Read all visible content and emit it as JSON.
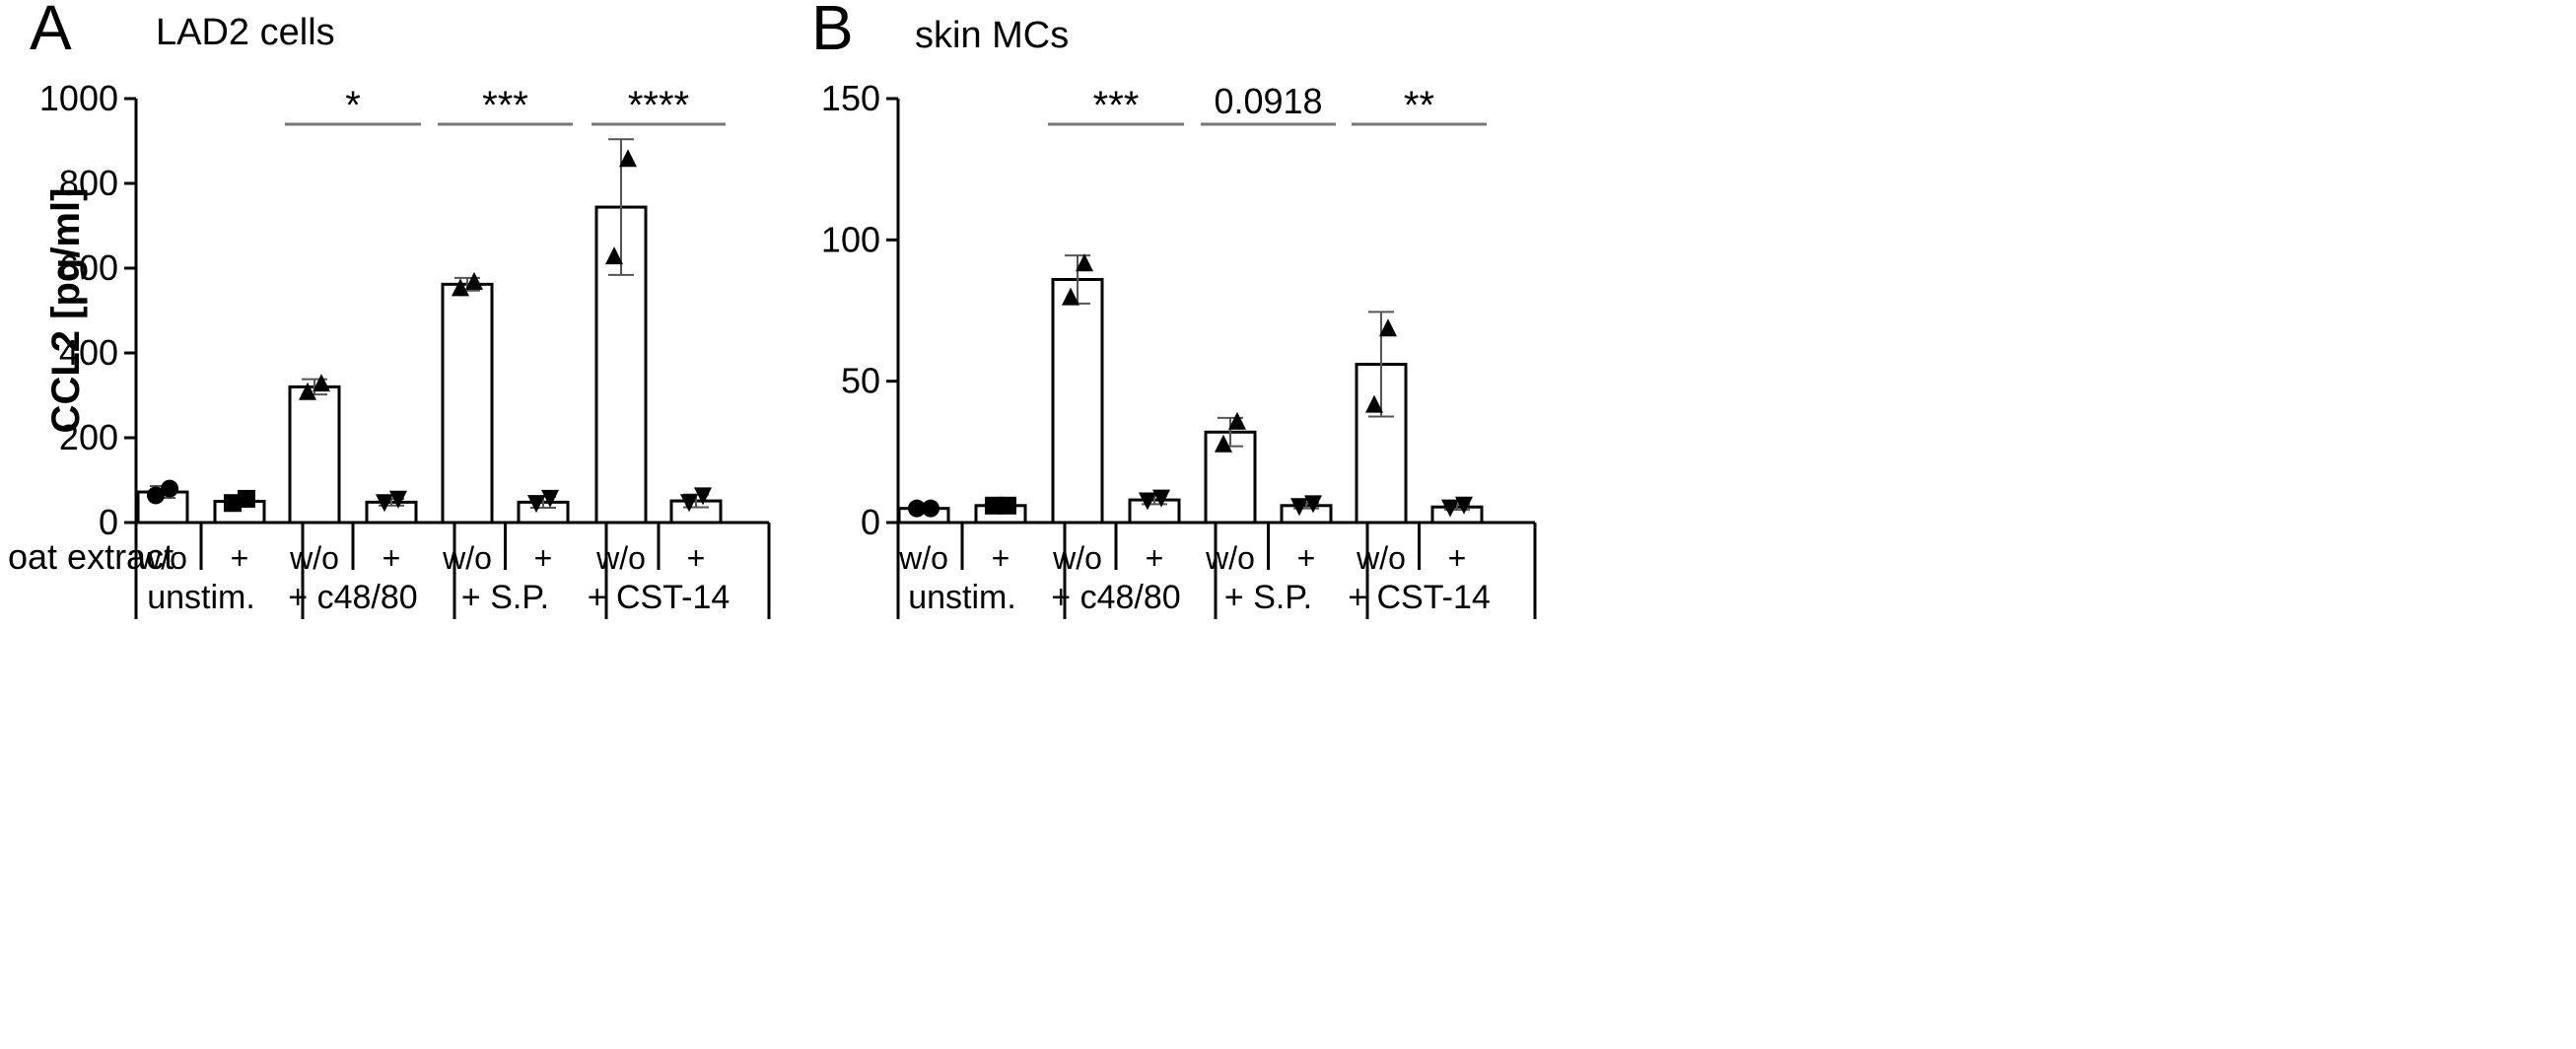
{
  "row_label": "oat extract",
  "chart_data": [
    {
      "type": "bar",
      "panel": "A",
      "title": "LAD2 cells",
      "ylabel": "CCL2 [pg/ml]",
      "ylim": [
        0,
        1000
      ],
      "yticks": [
        0,
        200,
        400,
        600,
        800,
        1000
      ],
      "categories": [
        "w/o",
        "+",
        "w/o",
        "+",
        "w/o",
        "+",
        "w/o",
        "+"
      ],
      "groups": [
        "unstim.",
        "+ c48/80",
        "+ S.P.",
        "+ CST-14"
      ],
      "values": [
        72,
        50,
        320,
        48,
        562,
        48,
        744,
        51
      ],
      "error": [
        14,
        10,
        18,
        8,
        15,
        13,
        160,
        15
      ],
      "points": [
        [
          64,
          80
        ],
        [
          46,
          56
        ],
        [
          310,
          330
        ],
        [
          46,
          54
        ],
        [
          555,
          570
        ],
        [
          44,
          56
        ],
        [
          630,
          860
        ],
        [
          46,
          62
        ]
      ],
      "markers": [
        "circle",
        "square",
        "triangle-up",
        "triangle-down",
        "triangle-up",
        "triangle-down",
        "triangle-up",
        "triangle-down"
      ],
      "significance": [
        {
          "group": 1,
          "label": "*"
        },
        {
          "group": 2,
          "label": "***"
        },
        {
          "group": 3,
          "label": "****"
        }
      ]
    },
    {
      "type": "bar",
      "panel": "B",
      "title": "skin MCs",
      "ylabel": "",
      "ylim": [
        0,
        150
      ],
      "yticks": [
        0,
        50,
        100,
        150
      ],
      "categories": [
        "w/o",
        "+",
        "w/o",
        "+",
        "w/o",
        "+",
        "w/o",
        "+"
      ],
      "groups": [
        "unstim.",
        "+ c48/80",
        "+ S.P.",
        "+ CST-14"
      ],
      "values": [
        5,
        6,
        86,
        8,
        32,
        6,
        56,
        5.5
      ],
      "error": [
        1,
        1.2,
        8.5,
        1.5,
        5,
        1,
        18.5,
        1
      ],
      "points": [
        [
          5,
          5
        ],
        [
          6,
          6
        ],
        [
          80,
          92
        ],
        [
          7.5,
          8.5
        ],
        [
          28,
          36
        ],
        [
          5.5,
          6.5
        ],
        [
          42,
          69
        ],
        [
          5,
          6
        ]
      ],
      "markers": [
        "circle",
        "square",
        "triangle-up",
        "triangle-down",
        "triangle-up",
        "triangle-down",
        "triangle-up",
        "triangle-down"
      ],
      "significance": [
        {
          "group": 1,
          "label": "***"
        },
        {
          "group": 2,
          "label": "0.0918"
        },
        {
          "group": 3,
          "label": "**"
        }
      ]
    }
  ]
}
